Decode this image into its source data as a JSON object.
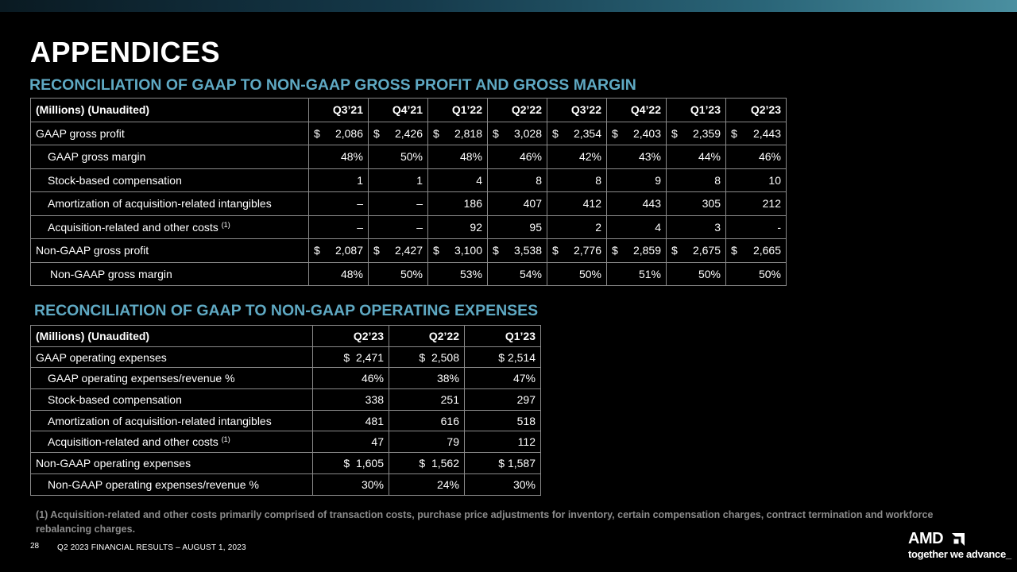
{
  "title": "APPENDICES",
  "section1": {
    "title": "RECONCILIATION OF GAAP TO NON-GAAP GROSS PROFIT AND GROSS MARGIN",
    "header": [
      "(Millions) (Unaudited)",
      "Q3’21",
      "Q4’21",
      "Q1’22",
      "Q2’22",
      "Q3’22",
      "Q4’22",
      "Q1’23",
      "Q2’23"
    ],
    "rows": [
      {
        "label": "GAAP gross profit",
        "indent": 0,
        "note": "",
        "dollar": true,
        "values": [
          "2,086",
          "2,426",
          "2,818",
          "3,028",
          "2,354",
          "2,403",
          "2,359",
          "2,443"
        ]
      },
      {
        "label": "GAAP gross margin",
        "indent": 1,
        "note": "",
        "dollar": false,
        "values": [
          "48%",
          "50%",
          "48%",
          "46%",
          "42%",
          "43%",
          "44%",
          "46%"
        ]
      },
      {
        "label": "Stock-based compensation",
        "indent": 1,
        "note": "",
        "dollar": false,
        "values": [
          "1",
          "1",
          "4",
          "8",
          "8",
          "9",
          "8",
          "10"
        ]
      },
      {
        "label": "Amortization of acquisition-related intangibles",
        "indent": 1,
        "note": "",
        "dollar": false,
        "values": [
          "–",
          "–",
          "186",
          "407",
          "412",
          "443",
          "305",
          "212"
        ]
      },
      {
        "label": "Acquisition-related and other costs",
        "indent": 1,
        "note": "(1)",
        "dollar": false,
        "values": [
          "–",
          "–",
          "92",
          "95",
          "2",
          "4",
          "3",
          "-"
        ]
      },
      {
        "label": "Non-GAAP gross profit",
        "indent": 0,
        "note": "",
        "dollar": true,
        "values": [
          "2,087",
          "2,427",
          "3,100",
          "3,538",
          "2,776",
          "2,859",
          "2,675",
          "2,665"
        ]
      },
      {
        "label": "Non-GAAP gross margin",
        "indent": 2,
        "note": "",
        "dollar": false,
        "values": [
          "48%",
          "50%",
          "53%",
          "54%",
          "50%",
          "51%",
          "50%",
          "50%"
        ]
      }
    ]
  },
  "section2": {
    "title": "RECONCILIATION OF GAAP TO NON-GAAP OPERATING EXPENSES",
    "header": [
      "(Millions) (Unaudited)",
      "Q2’23",
      "Q2’22",
      "Q1’23"
    ],
    "rows": [
      {
        "label": "GAAP operating expenses",
        "indent": 0,
        "note": "",
        "values": [
          "$  2,471",
          "$  2,508",
          "$ 2,514"
        ]
      },
      {
        "label": "GAAP operating expenses/revenue %",
        "indent": 1,
        "note": "",
        "values": [
          "46%",
          "38%",
          "47%"
        ]
      },
      {
        "label": "Stock-based compensation",
        "indent": 1,
        "note": "",
        "values": [
          "338",
          "251",
          "297"
        ]
      },
      {
        "label": "Amortization of acquisition-related intangibles",
        "indent": 1,
        "note": "",
        "values": [
          "481",
          "616",
          "518"
        ]
      },
      {
        "label": "Acquisition-related and other costs",
        "indent": 1,
        "note": "(1)",
        "values": [
          "47",
          "79",
          "112"
        ]
      },
      {
        "label": "Non-GAAP operating expenses",
        "indent": 0,
        "note": "",
        "values": [
          "$  1,605",
          "$  1,562",
          "$ 1,587"
        ]
      },
      {
        "label": "Non-GAAP operating expenses/revenue %",
        "indent": 1,
        "note": "",
        "values": [
          "30%",
          "24%",
          "30%"
        ]
      }
    ]
  },
  "dollar_sign": "$",
  "footnote": "(1) Acquisition-related and other costs primarily comprised of transaction costs, purchase price adjustments for inventory, certain compensation charges, contract termination and workforce rebalancing charges.",
  "footer": {
    "page_number": "28",
    "text": "Q2 2023 FINANCIAL RESULTS – AUGUST 1, 2023"
  },
  "logo": {
    "wordmark": "AMD",
    "tagline": "together we advance_",
    "icon": "amd-arrow-icon"
  },
  "colors": {
    "background": "#000000",
    "section_title": "#5fa9c3",
    "table_border": "#8a8a8a",
    "footnote": "#8c8c8c"
  }
}
